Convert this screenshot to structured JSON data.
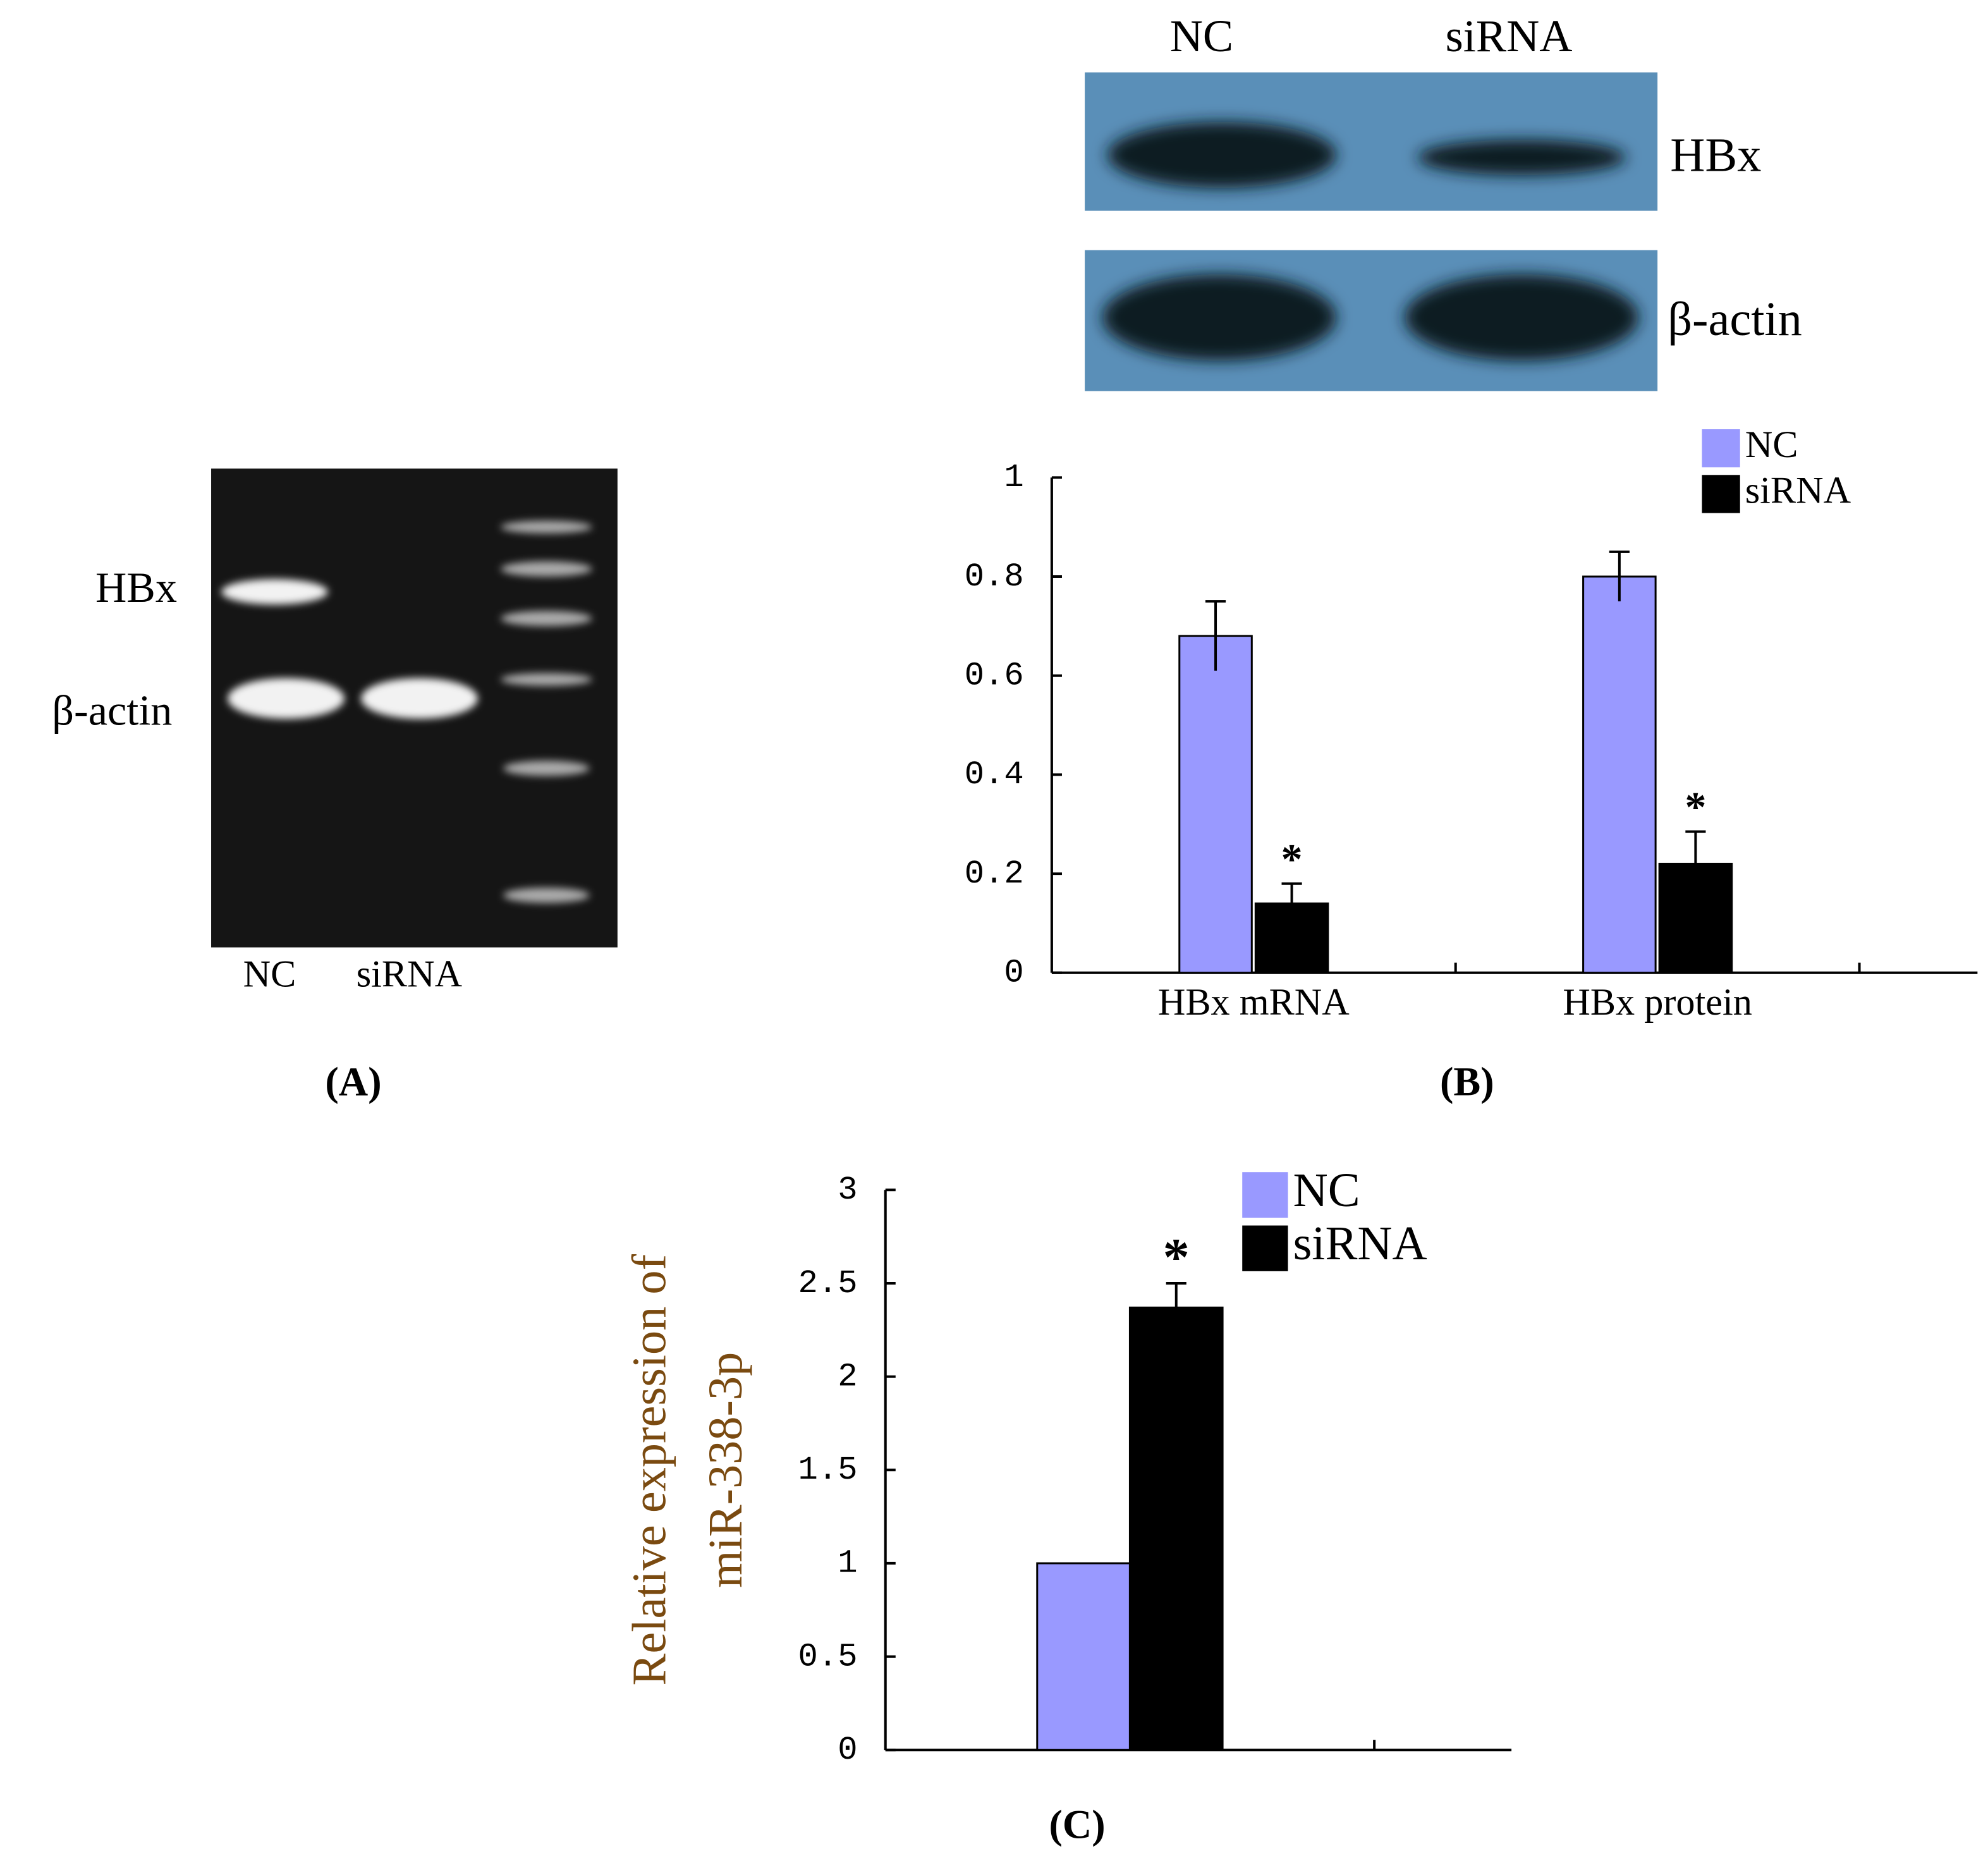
{
  "gel": {
    "bands": [
      "HBx",
      "β-actin"
    ],
    "lanes": [
      "NC",
      "siRNA"
    ],
    "panel": "(A)"
  },
  "western": {
    "lanes": [
      "NC",
      "siRNA"
    ],
    "bands": [
      "HBx",
      "β-actin"
    ],
    "panel": "(B)"
  },
  "chart_data": [
    {
      "type": "bar",
      "categories": [
        "HBx mRNA",
        "HBx protein"
      ],
      "series": [
        {
          "name": "NC",
          "color": "#9999ff",
          "values": [
            0.68,
            0.8
          ],
          "errors": [
            0.07,
            0.05
          ]
        },
        {
          "name": "siRNA",
          "color": "#000000",
          "values": [
            0.14,
            0.22
          ],
          "errors": [
            0.04,
            0.065
          ],
          "markers": [
            "*",
            "*"
          ]
        }
      ],
      "ylim": [
        0,
        1
      ],
      "yticks": [
        0,
        0.2,
        0.4,
        0.6,
        0.8,
        1
      ],
      "legend": "top-right"
    },
    {
      "type": "bar",
      "categories": [
        null
      ],
      "ylabel": [
        "Relative expression of",
        "miR-338-3p"
      ],
      "series": [
        {
          "name": "NC",
          "color": "#9999ff",
          "values": [
            1.0
          ],
          "errors": [
            0
          ]
        },
        {
          "name": "siRNA",
          "color": "#000000",
          "values": [
            2.37
          ],
          "errors": [
            0.13
          ],
          "markers": [
            "*"
          ]
        }
      ],
      "ylim": [
        0,
        3
      ],
      "yticks": [
        0,
        0.5,
        1,
        1.5,
        2,
        2.5,
        3
      ],
      "legend": "top",
      "panel": "(C)"
    }
  ]
}
